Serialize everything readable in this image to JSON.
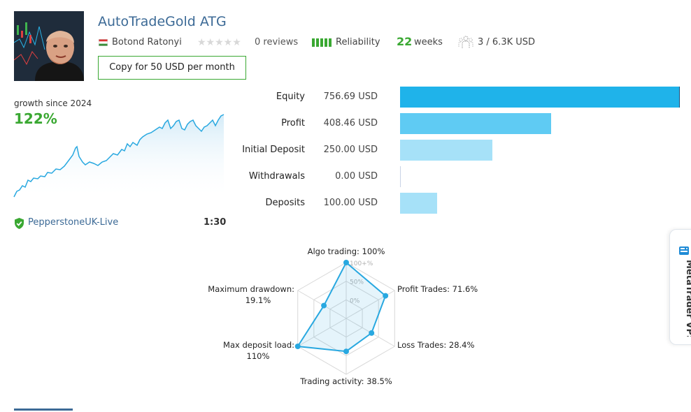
{
  "signal": {
    "title": "AutoTradeGold ATG",
    "author": "Botond Ratonyi",
    "reviews": "0 reviews",
    "reliability_label": "Reliability",
    "weeks_value": "22",
    "weeks_label": "weeks",
    "subscribers": "3 / 6.3K USD",
    "copy_button": "Copy for 50 USD per month"
  },
  "growth": {
    "label": "growth since 2024",
    "value": "122%"
  },
  "account": {
    "broker": "PepperstoneUK-Live",
    "leverage": "1:30"
  },
  "stats": [
    {
      "label": "Equity",
      "value": "756.69 USD",
      "amount": 756.69,
      "color": "#1fb3ea"
    },
    {
      "label": "Profit",
      "value": "408.46 USD",
      "amount": 408.46,
      "color": "#5fcbf3"
    },
    {
      "label": "Initial Deposit",
      "value": "250.00 USD",
      "amount": 250.0,
      "color": "#a6e1f8"
    },
    {
      "label": "Withdrawals",
      "value": "0.00 USD",
      "amount": 0.0,
      "color": "#a6e1f8"
    },
    {
      "label": "Deposits",
      "value": "100.00 USD",
      "amount": 100.0,
      "color": "#a6e1f8"
    }
  ],
  "radar": {
    "axes": [
      {
        "label": "Algo trading: 100%",
        "value": 100
      },
      {
        "label": "Profit Trades: 71.6%",
        "value": 71.6
      },
      {
        "label": "Loss Trades: 28.4%",
        "value": 28.4
      },
      {
        "label": "Trading activity: 38.5%",
        "value": 38.5
      },
      {
        "label_lines": [
          "Max deposit load:",
          "110%"
        ],
        "value": 110
      },
      {
        "label_lines": [
          "Maximum drawdown:",
          "19.1%"
        ],
        "value": 19.1
      }
    ],
    "scale_labels": [
      "100+%",
      "50%",
      "0%"
    ]
  },
  "sidebar_tab": {
    "label": "MetaTrader VPS"
  },
  "colors": {
    "accent_blue": "#3c6a96",
    "green": "#3aa832",
    "chart_line": "#28a8e0"
  }
}
